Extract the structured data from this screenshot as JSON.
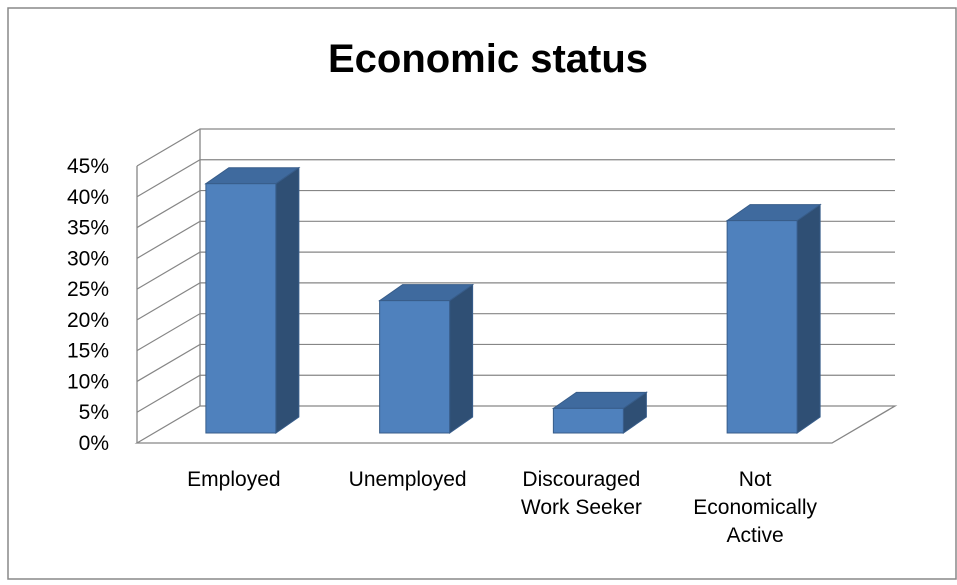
{
  "chart_data": {
    "type": "bar",
    "title": "Economic status",
    "categories": [
      "Employed",
      "Unemployed",
      "Discouraged Work Seeker",
      "Not Economically Active"
    ],
    "category_lines": [
      [
        "Employed"
      ],
      [
        "Unemployed"
      ],
      [
        "Discouraged",
        "Work Seeker"
      ],
      [
        "Not",
        "Economically",
        "Active"
      ]
    ],
    "values": [
      40.5,
      21.5,
      4,
      34.5
    ],
    "ylim": [
      0,
      45
    ],
    "yticks": [
      "0%",
      "5%",
      "10%",
      "15%",
      "20%",
      "25%",
      "30%",
      "35%",
      "40%",
      "45%"
    ],
    "grid": true,
    "three_d": true,
    "colors": {
      "bar_front": "#4f81bd",
      "bar_side": "#2f4f74",
      "bar_top": "#3f6a9e",
      "bar_edge": "#385d8a",
      "grid": "#868686",
      "frame": "#888888"
    }
  }
}
